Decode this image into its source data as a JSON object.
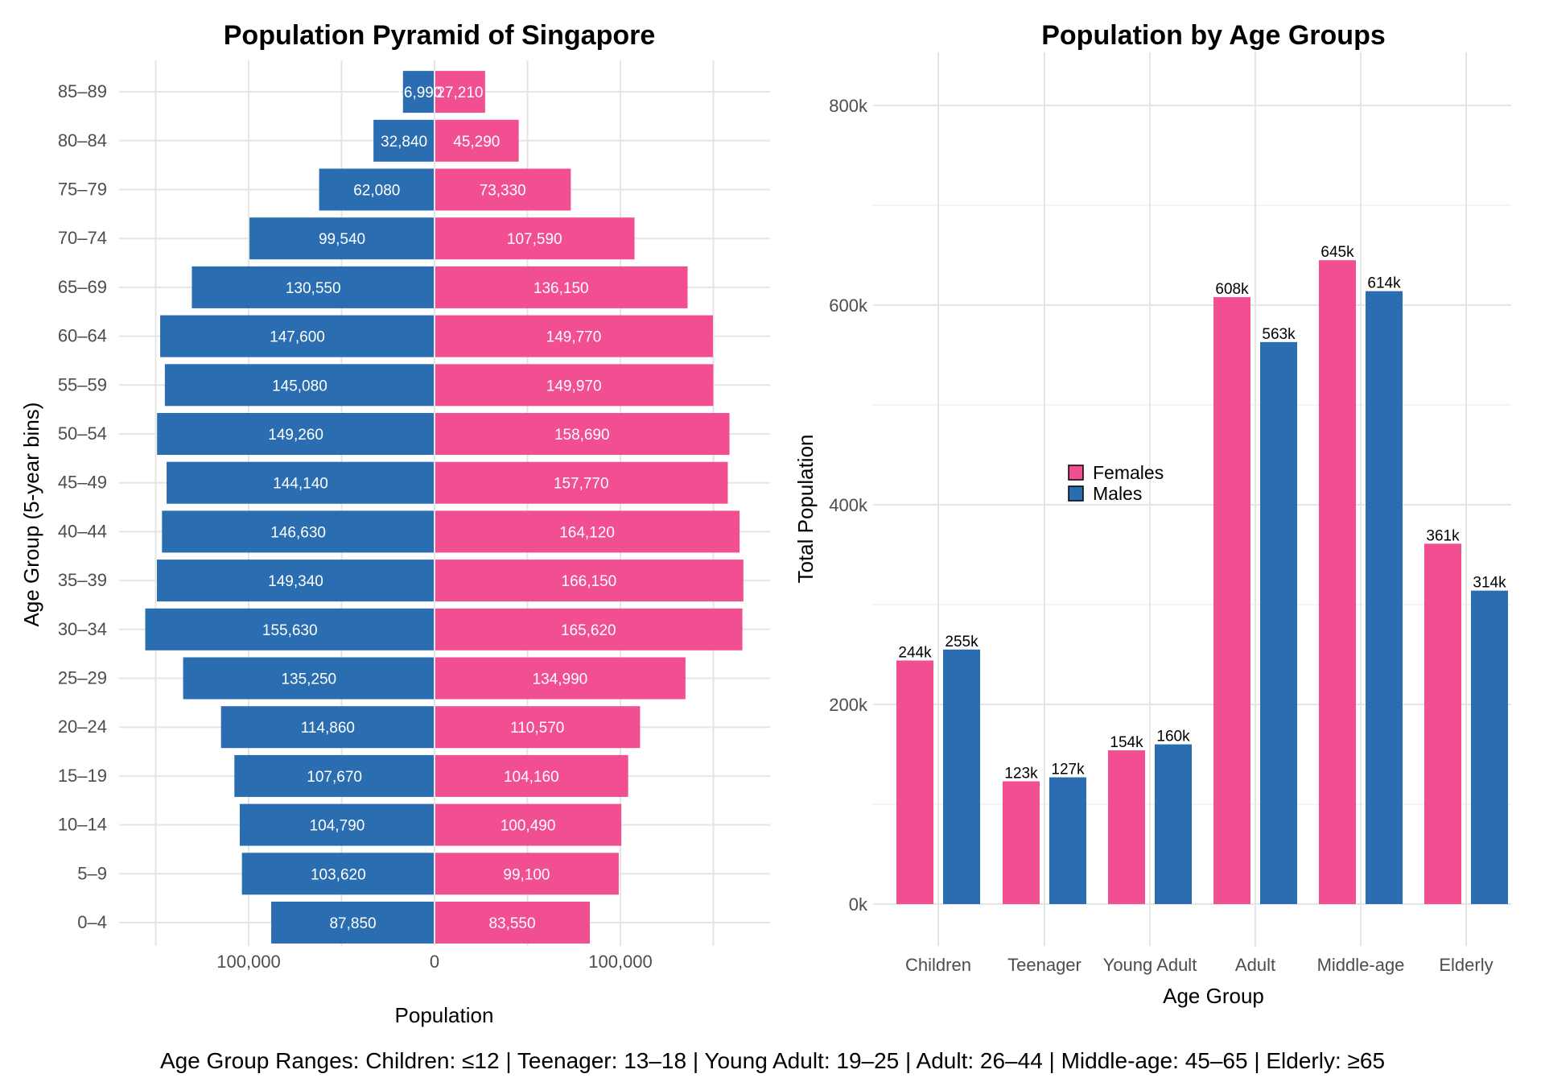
{
  "caption": "Age Group Ranges: Children: ≤12 | Teenager: 13–18 | Young Adult: 19–25 | Adult: 26–44 | Middle-age: 45–65 | Elderly: ≥65",
  "colors": {
    "female": "#F24F93",
    "male": "#2A6DB0"
  },
  "chart_data": [
    {
      "type": "bar",
      "orientation": "horizontal-diverging",
      "title": "Population Pyramid of Singapore",
      "xlabel": "Population",
      "ylabel": "Age Group (5-year bins)",
      "x_ticks": [
        "100,000",
        "0",
        "100,000"
      ],
      "categories": [
        "0–4",
        "5–9",
        "10–14",
        "15–19",
        "20–24",
        "25–29",
        "30–34",
        "35–39",
        "40–44",
        "45–49",
        "50–54",
        "55–59",
        "60–64",
        "65–69",
        "70–74",
        "75–79",
        "80–84",
        "85–89"
      ],
      "series": [
        {
          "side": "left",
          "values": [
            87850,
            103620,
            104790,
            107670,
            114860,
            135250,
            155630,
            149340,
            146630,
            144140,
            149260,
            145080,
            147600,
            130550,
            99540,
            62080,
            32840,
            16990
          ],
          "labels": [
            "87,850",
            "103,620",
            "104,790",
            "107,670",
            "114,860",
            "135,250",
            "155,630",
            "149,340",
            "146,630",
            "144,140",
            "149,260",
            "145,080",
            "147,600",
            "130,550",
            "99,540",
            "62,080",
            "32,840",
            "16,990"
          ]
        },
        {
          "side": "right",
          "values": [
            83550,
            99100,
            100490,
            104160,
            110570,
            134990,
            165620,
            166150,
            164120,
            157770,
            158690,
            149970,
            149770,
            136150,
            107590,
            73330,
            45290,
            27210
          ],
          "labels": [
            "83,550",
            "99,100",
            "100,490",
            "104,160",
            "110,570",
            "134,990",
            "165,620",
            "166,150",
            "164,120",
            "157,770",
            "158,690",
            "149,970",
            "149,770",
            "136,150",
            "107,590",
            "73,330",
            "45,290",
            "27,210"
          ]
        }
      ],
      "grid": true
    },
    {
      "type": "bar",
      "title": "Population by Age Groups",
      "xlabel": "Age Group",
      "ylabel": "Total Population",
      "ylim": [
        0,
        800000
      ],
      "y_ticks": [
        "0k",
        "200k",
        "400k",
        "600k",
        "800k"
      ],
      "categories": [
        "Children",
        "Teenager",
        "Young Adult",
        "Adult",
        "Middle-age",
        "Elderly"
      ],
      "series": [
        {
          "name": "Females",
          "values": [
            244000,
            123000,
            154000,
            608000,
            645000,
            361000
          ],
          "labels": [
            "244k",
            "123k",
            "154k",
            "608k",
            "645k",
            "361k"
          ]
        },
        {
          "name": "Males",
          "values": [
            255000,
            127000,
            160000,
            563000,
            614000,
            314000
          ],
          "labels": [
            "255k",
            "127k",
            "160k",
            "563k",
            "614k",
            "314k"
          ]
        }
      ],
      "legend": "left-center inside plot",
      "grid": true
    }
  ]
}
